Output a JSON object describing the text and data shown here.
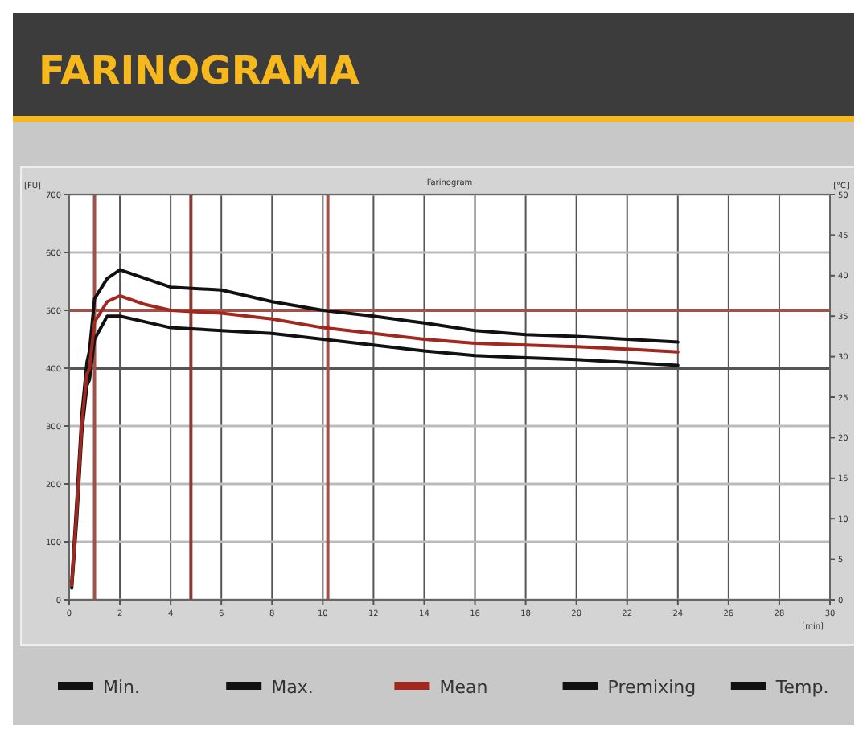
{
  "chart_data": {
    "type": "line",
    "title": "FARINOGRAMA",
    "subtitle": "Farinogram",
    "xlabel": "[min]",
    "ylabel": "[FU]",
    "y2label": "[°C]",
    "x": [
      0.1,
      0.3,
      0.5,
      0.7,
      0.8,
      1.0,
      1.5,
      2,
      3,
      4,
      6,
      8,
      10,
      12,
      14,
      16,
      18,
      20,
      22,
      24
    ],
    "series": [
      {
        "name": "Min.",
        "color": "#111111",
        "values": [
          20,
          140,
          290,
          370,
          380,
          450,
          490,
          490,
          480,
          470,
          465,
          460,
          450,
          440,
          430,
          422,
          418,
          415,
          410,
          405
        ]
      },
      {
        "name": "Max.",
        "color": "#111111",
        "values": [
          30,
          170,
          320,
          410,
          430,
          520,
          555,
          570,
          555,
          540,
          535,
          515,
          500,
          490,
          478,
          465,
          458,
          455,
          450,
          445
        ]
      },
      {
        "name": "Mean",
        "color": "#a0281e",
        "values": [
          25,
          155,
          305,
          390,
          400,
          480,
          515,
          525,
          510,
          500,
          495,
          485,
          470,
          460,
          450,
          443,
          440,
          437,
          433,
          428
        ]
      },
      {
        "name": "Premixing",
        "color": "#111111",
        "values": [
          null,
          null,
          null,
          null,
          null,
          null,
          null,
          null,
          null,
          null,
          null,
          null,
          null,
          null,
          null,
          null,
          null,
          null,
          null,
          null
        ]
      },
      {
        "name": "Temp.",
        "color": "#111111",
        "values": [
          null,
          null,
          null,
          null,
          null,
          null,
          null,
          null,
          null,
          null,
          null,
          null,
          null,
          null,
          null,
          null,
          null,
          null,
          null,
          null
        ]
      }
    ],
    "xlim": [
      0,
      30
    ],
    "xticks": [
      0,
      2,
      4,
      6,
      8,
      10,
      12,
      14,
      16,
      18,
      20,
      22,
      24,
      26,
      28,
      30
    ],
    "ylim": [
      0,
      700
    ],
    "yticks": [
      0,
      100,
      200,
      300,
      400,
      500,
      600,
      700
    ],
    "y2lim": [
      0,
      50
    ],
    "y2ticks": [
      0,
      5,
      10,
      15,
      20,
      25,
      30,
      35,
      40,
      45,
      50
    ],
    "ref_lines": [
      {
        "axis": "y",
        "value": 500,
        "color": "#a0524a"
      },
      {
        "axis": "y",
        "value": 400,
        "color": "#555555"
      },
      {
        "axis": "x",
        "value": 1,
        "color": "#a0524a"
      },
      {
        "axis": "x",
        "value": 4.8,
        "color": "#8a3a32"
      },
      {
        "axis": "x",
        "value": 10.2,
        "color": "#a0524a"
      }
    ],
    "grid": true,
    "legend": "bottom",
    "marker": "none",
    "line_style": "solid"
  }
}
